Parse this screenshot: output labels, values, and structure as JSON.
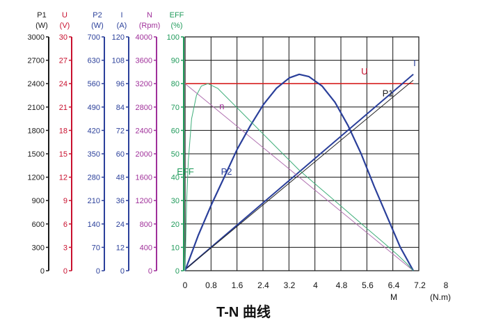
{
  "chart_data": {
    "type": "line",
    "title": "T-N 曲线",
    "x_axis": {
      "ticks": [
        "0",
        "0.8",
        "1.6",
        "2.4",
        "3.2",
        "4",
        "4.8",
        "5.6",
        "6.4",
        "7.2",
        "8"
      ],
      "label": "M",
      "unit": "(N.m)",
      "range": [
        0,
        8
      ]
    },
    "y_axes": [
      {
        "name": "P1",
        "unit": "(W)",
        "color": "#1a1a1a",
        "range": [
          0,
          3000
        ],
        "ticks": [
          "0",
          "300",
          "600",
          "900",
          "1200",
          "1500",
          "1800",
          "2100",
          "2400",
          "2700",
          "3000"
        ]
      },
      {
        "name": "U",
        "unit": "(V)",
        "color": "#c8102e",
        "range": [
          0,
          30
        ],
        "ticks": [
          "0",
          "3",
          "6",
          "9",
          "12",
          "15",
          "18",
          "21",
          "24",
          "27",
          "30"
        ]
      },
      {
        "name": "P2",
        "unit": "(W)",
        "color": "#2a3f9a",
        "range": [
          0,
          700
        ],
        "ticks": [
          "0",
          "70",
          "140",
          "210",
          "280",
          "350",
          "420",
          "490",
          "560",
          "630",
          "700"
        ]
      },
      {
        "name": "I",
        "unit": "(A)",
        "color": "#2a3f9a",
        "range": [
          0,
          120
        ],
        "ticks": [
          "0",
          "12",
          "24",
          "36",
          "48",
          "60",
          "72",
          "84",
          "96",
          "108",
          "120"
        ]
      },
      {
        "name": "N",
        "unit": "(Rpm)",
        "color": "#a0309a",
        "range": [
          0,
          4000
        ],
        "ticks": [
          "0",
          "400",
          "800",
          "1200",
          "1600",
          "2000",
          "2400",
          "2800",
          "3200",
          "3600",
          "4000"
        ]
      },
      {
        "name": "EFF",
        "unit": "(%)",
        "color": "#1f9a5a",
        "range": [
          0,
          100
        ],
        "ticks": [
          "0",
          "10",
          "20",
          "30",
          "40",
          "50",
          "60",
          "70",
          "80",
          "90",
          "100"
        ]
      }
    ],
    "grid": true,
    "series": [
      {
        "name": "U",
        "axis": "EFF",
        "color": "#d62020",
        "width": 1.6,
        "points": [
          [
            0,
            80
          ],
          [
            7,
            80
          ]
        ]
      },
      {
        "name": "I",
        "axis": "EFF",
        "color": "#2a3f9a",
        "width": 2,
        "points": [
          [
            0,
            0.5
          ],
          [
            7,
            84
          ]
        ]
      },
      {
        "name": "P1",
        "axis": "EFF",
        "color": "#222222",
        "width": 1,
        "points": [
          [
            0,
            0.5
          ],
          [
            7,
            81.5
          ]
        ]
      },
      {
        "name": "n",
        "axis": "EFF",
        "color": "#b070b0",
        "width": 1,
        "points": [
          [
            0,
            80
          ],
          [
            7,
            0
          ]
        ]
      },
      {
        "name": "P2",
        "axis": "EFF",
        "color": "#2a3f9a",
        "width": 2.2,
        "points": [
          [
            0,
            0
          ],
          [
            0.4,
            15
          ],
          [
            0.8,
            28
          ],
          [
            1.2,
            40
          ],
          [
            1.6,
            52
          ],
          [
            2,
            62
          ],
          [
            2.4,
            71
          ],
          [
            2.8,
            78
          ],
          [
            3.2,
            82.5
          ],
          [
            3.5,
            84
          ],
          [
            3.8,
            83
          ],
          [
            4.2,
            79
          ],
          [
            4.6,
            72
          ],
          [
            5,
            62
          ],
          [
            5.4,
            50
          ],
          [
            5.8,
            36
          ],
          [
            6.2,
            23
          ],
          [
            6.6,
            10
          ],
          [
            7,
            0
          ]
        ]
      },
      {
        "name": "EFF",
        "axis": "EFF",
        "color": "#3fae7a",
        "width": 1,
        "points": [
          [
            0,
            0
          ],
          [
            0.05,
            30
          ],
          [
            0.1,
            47
          ],
          [
            0.2,
            65
          ],
          [
            0.35,
            75
          ],
          [
            0.5,
            79
          ],
          [
            0.7,
            80
          ],
          [
            1,
            78
          ],
          [
            1.5,
            71
          ],
          [
            2,
            64
          ],
          [
            2.5,
            57
          ],
          [
            3,
            50
          ],
          [
            3.5,
            43
          ],
          [
            4,
            37
          ],
          [
            4.5,
            31
          ],
          [
            5,
            25
          ],
          [
            5.5,
            19
          ],
          [
            6,
            13
          ],
          [
            6.5,
            7
          ],
          [
            6.8,
            3
          ],
          [
            7,
            0
          ]
        ]
      }
    ],
    "curve_labels": [
      {
        "text": "U",
        "color": "#c8102e",
        "x": 5.4,
        "y": 84
      },
      {
        "text": "I",
        "color": "#2a3f9a",
        "x": 7.0,
        "y": 87.5
      },
      {
        "text": "P1",
        "color": "#1a1a1a",
        "x": 6.05,
        "y": 74.5
      },
      {
        "text": "n",
        "color": "#a0309a",
        "x": 1.05,
        "y": 69
      },
      {
        "text": "P2",
        "color": "#2a3f9a",
        "x": 1.1,
        "y": 41
      },
      {
        "text": "EFF",
        "color": "#1f9a5a",
        "x": -0.25,
        "y": 41
      }
    ]
  }
}
